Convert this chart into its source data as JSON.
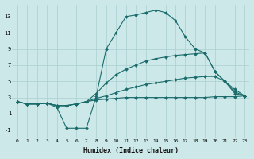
{
  "xlabel": "Humidex (Indice chaleur)",
  "bg_color": "#cce8e8",
  "line_color": "#1a6b6b",
  "grid_color": "#aacfcf",
  "xlim": [
    -0.5,
    23.5
  ],
  "ylim": [
    -2,
    14.5
  ],
  "xticks": [
    0,
    1,
    2,
    3,
    4,
    5,
    6,
    7,
    8,
    9,
    10,
    11,
    12,
    13,
    14,
    15,
    16,
    17,
    18,
    19,
    20,
    21,
    22,
    23
  ],
  "yticks": [
    -1,
    1,
    3,
    5,
    7,
    9,
    11,
    13
  ],
  "series": [
    {
      "x": [
        0,
        1,
        2,
        3,
        4,
        5,
        6,
        7,
        8,
        9,
        10,
        11,
        12,
        13,
        14,
        15,
        16,
        17,
        18,
        19,
        20,
        21,
        22,
        23
      ],
      "y": [
        2.5,
        2.2,
        2.2,
        2.3,
        2.0,
        2.0,
        2.2,
        2.5,
        2.7,
        2.8,
        2.9,
        3.0,
        3.0,
        3.0,
        3.0,
        3.0,
        3.0,
        3.0,
        3.0,
        3.0,
        3.1,
        3.1,
        3.1,
        3.2
      ]
    },
    {
      "x": [
        0,
        1,
        2,
        3,
        4,
        5,
        6,
        7,
        8,
        9,
        10,
        11,
        12,
        13,
        14,
        15,
        16,
        17,
        18,
        19,
        20,
        21,
        22,
        23
      ],
      "y": [
        2.5,
        2.2,
        2.2,
        2.3,
        2.0,
        2.0,
        2.2,
        2.5,
        2.9,
        3.2,
        3.6,
        4.0,
        4.3,
        4.6,
        4.8,
        5.0,
        5.2,
        5.4,
        5.5,
        5.6,
        5.6,
        5.0,
        4.0,
        3.2
      ]
    },
    {
      "x": [
        0,
        1,
        2,
        3,
        4,
        5,
        6,
        7,
        8,
        9,
        10,
        11,
        12,
        13,
        14,
        15,
        16,
        17,
        18,
        19,
        20,
        21,
        22,
        23
      ],
      "y": [
        2.5,
        2.2,
        2.2,
        2.3,
        2.0,
        2.0,
        2.2,
        2.5,
        3.5,
        4.8,
        5.8,
        6.5,
        7.0,
        7.5,
        7.8,
        8.0,
        8.2,
        8.3,
        8.4,
        8.5,
        6.2,
        5.0,
        3.7,
        3.2
      ]
    },
    {
      "x": [
        0,
        1,
        2,
        3,
        4,
        5,
        6,
        7,
        8,
        9,
        10,
        11,
        12,
        13,
        14,
        15,
        16,
        17,
        18,
        19,
        20,
        21,
        22,
        23
      ],
      "y": [
        2.5,
        2.2,
        2.2,
        2.3,
        1.8,
        -0.8,
        -0.8,
        -0.8,
        3.2,
        9.0,
        11.0,
        13.0,
        13.2,
        13.5,
        13.8,
        13.5,
        12.5,
        10.5,
        9.0,
        8.5,
        6.2,
        5.0,
        3.5,
        3.2
      ]
    }
  ]
}
